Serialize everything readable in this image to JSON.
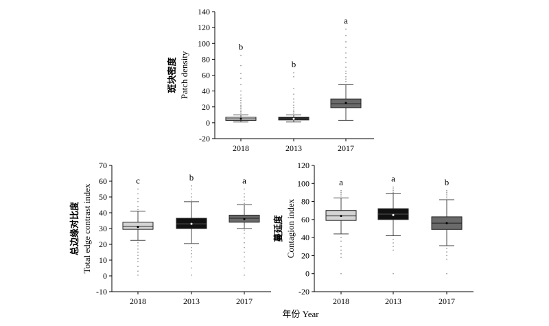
{
  "chart_data": [
    {
      "type": "box",
      "ylabel_cn": "斑块密度",
      "ylabel_en": "Patch density",
      "ylim": [
        -20,
        140
      ],
      "yticks": [
        -20,
        0,
        20,
        40,
        60,
        80,
        100,
        120,
        140
      ],
      "categories": [
        "2018",
        "2013",
        "2017"
      ],
      "colors": [
        "#d4d4d4",
        "#111111",
        "#6a6a6a"
      ],
      "boxes": [
        {
          "category": "2018",
          "min": 1,
          "q1": 3,
          "median": 5,
          "q3": 7,
          "max": 10,
          "mean": 5,
          "letter": "b"
        },
        {
          "category": "2013",
          "min": 1,
          "q1": 3.5,
          "median": 5,
          "q3": 7,
          "max": 10,
          "mean": 5,
          "letter": "b"
        },
        {
          "category": "2017",
          "min": 3,
          "q1": 19,
          "median": 24,
          "q3": 30,
          "max": 48,
          "mean": 25,
          "letter": "a"
        }
      ],
      "outliers": [
        [
          12,
          14,
          16,
          18,
          20,
          22,
          25,
          28,
          31,
          35,
          40,
          48,
          56,
          62,
          72,
          85
        ],
        [
          12,
          14,
          16,
          19,
          22,
          26,
          30,
          36,
          43,
          58,
          63
        ],
        [
          52,
          55,
          58,
          62,
          65,
          70,
          76,
          82,
          88,
          95,
          102,
          110,
          118
        ]
      ]
    },
    {
      "type": "box",
      "ylabel_cn": "总边缘对比度",
      "ylabel_en": "Total edge contrast index",
      "ylim": [
        -10,
        70
      ],
      "yticks": [
        -10,
        0,
        10,
        20,
        30,
        40,
        50,
        60,
        70
      ],
      "categories": [
        "2018",
        "2013",
        "2017"
      ],
      "colors": [
        "#d4d4d4",
        "#111111",
        "#6a6a6a"
      ],
      "boxes": [
        {
          "category": "2018",
          "min": 22.5,
          "q1": 29.5,
          "median": 31.5,
          "q3": 34,
          "max": 41,
          "mean": 31,
          "letter": "c"
        },
        {
          "category": "2013",
          "min": 20.5,
          "q1": 30,
          "median": 33,
          "q3": 36.5,
          "max": 47,
          "mean": 33,
          "letter": "b"
        },
        {
          "category": "2017",
          "min": 30,
          "q1": 34,
          "median": 36.5,
          "q3": 38.5,
          "max": 45,
          "mean": 36,
          "letter": "a"
        }
      ],
      "outliers": [
        [
          0.5,
          3,
          6,
          9,
          11,
          13,
          15,
          17,
          19,
          21,
          42,
          44,
          47,
          49,
          52,
          55
        ],
        [
          0.5,
          5,
          9,
          12,
          14,
          16,
          18,
          48,
          50,
          52,
          55,
          57
        ],
        [
          0.5,
          5,
          9,
          12,
          15,
          18,
          21,
          24,
          27,
          29,
          46,
          48,
          50,
          52,
          55
        ]
      ]
    },
    {
      "type": "box",
      "ylabel_cn": "蔓延度",
      "ylabel_en": "Contagion index",
      "ylim": [
        -20,
        120
      ],
      "yticks": [
        -20,
        0,
        20,
        40,
        60,
        80,
        100,
        120
      ],
      "xlabel": "年份 Year",
      "categories": [
        "2018",
        "2013",
        "2017"
      ],
      "colors": [
        "#d4d4d4",
        "#111111",
        "#6a6a6a"
      ],
      "boxes": [
        {
          "category": "2018",
          "min": 44,
          "q1": 59,
          "median": 64,
          "q3": 70,
          "max": 84,
          "mean": 64,
          "letter": "a"
        },
        {
          "category": "2013",
          "min": 42,
          "q1": 60,
          "median": 66,
          "q3": 72,
          "max": 89,
          "mean": 65,
          "letter": "a"
        },
        {
          "category": "2017",
          "min": 31,
          "q1": 49,
          "median": 56,
          "q3": 63,
          "max": 82,
          "mean": 56,
          "letter": "b"
        }
      ],
      "outliers": [
        [
          0,
          18,
          22,
          26,
          30,
          36,
          40,
          86,
          88,
          90,
          92
        ],
        [
          0,
          26,
          30,
          34,
          38,
          90,
          92,
          94,
          96
        ],
        [
          0,
          16,
          20,
          24,
          28,
          84,
          86,
          88,
          90,
          92
        ]
      ]
    }
  ]
}
